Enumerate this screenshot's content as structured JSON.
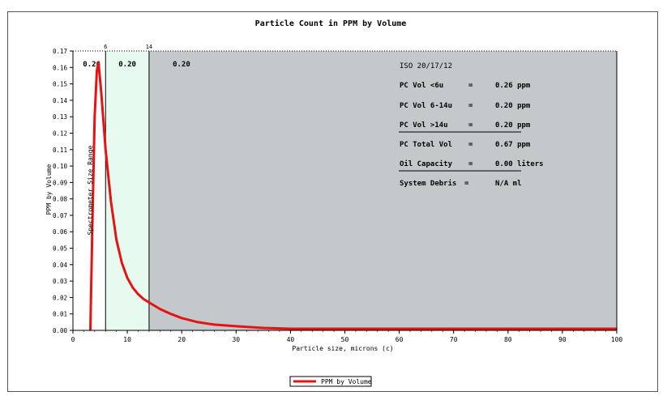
{
  "chart_data": {
    "type": "line",
    "title": "Particle Count in PPM by Volume",
    "xlabel": "Particle size, microns (c)",
    "ylabel": "PPM by Volume",
    "xlim": [
      0,
      100
    ],
    "ylim": [
      0,
      0.17
    ],
    "x_ticks": [
      "0",
      "10",
      "20",
      "30",
      "40",
      "50",
      "60",
      "70",
      "80",
      "90",
      "100"
    ],
    "y_ticks": [
      "0.00",
      "0.01",
      "0.02",
      "0.03",
      "0.04",
      "0.05",
      "0.06",
      "0.07",
      "0.08",
      "0.09",
      "0.10",
      "0.11",
      "0.12",
      "0.13",
      "0.14",
      "0.15",
      "0.16",
      "0.17"
    ],
    "top_markers": [
      {
        "x": 6,
        "label": "6"
      },
      {
        "x": 14,
        "label": "14"
      }
    ],
    "region_values": [
      "0.26",
      "0.20",
      "0.20"
    ],
    "region_colors": [
      "#ffffff",
      "#e6faf0",
      "#c3c9ca"
    ],
    "spectrometer_label": "Spectrometer Size Range",
    "series": [
      {
        "name": "PPM by Volume",
        "color": "#e41414",
        "x": [
          3.2,
          3.6,
          4.0,
          4.4,
          4.7,
          5.2,
          6.0,
          7.0,
          8.0,
          9.0,
          10.0,
          11.0,
          12.0,
          13.0,
          14.0,
          16.0,
          18.0,
          20.0,
          23.0,
          26.0,
          30.0,
          35.0,
          40.0,
          50.0,
          60.0,
          70.0,
          80.0,
          90.0,
          100.0
        ],
        "values": [
          0.0,
          0.07,
          0.13,
          0.158,
          0.163,
          0.145,
          0.11,
          0.078,
          0.055,
          0.041,
          0.032,
          0.026,
          0.022,
          0.019,
          0.017,
          0.013,
          0.01,
          0.0075,
          0.005,
          0.0035,
          0.0025,
          0.0015,
          0.001,
          0.001,
          0.001,
          0.001,
          0.001,
          0.001,
          0.001
        ]
      }
    ],
    "legend": "bottom",
    "grid": false
  },
  "summary": {
    "iso": "ISO 20/17/12",
    "rows": [
      {
        "label": "PC Vol <6u",
        "eq": "=",
        "value": "0.26 ppm"
      },
      {
        "label": "PC Vol 6-14u",
        "eq": "=",
        "value": "0.20 ppm"
      },
      {
        "label": "PC Vol >14u",
        "eq": "=",
        "value": "0.20 ppm"
      },
      {
        "label": "PC Total Vol",
        "eq": "=",
        "value": "0.67 ppm"
      },
      {
        "label": "Oil Capacity",
        "eq": "=",
        "value": "0.00 liters"
      }
    ],
    "debris": {
      "label": "System Debris",
      "eq": "=",
      "value": "N/A ml"
    }
  }
}
